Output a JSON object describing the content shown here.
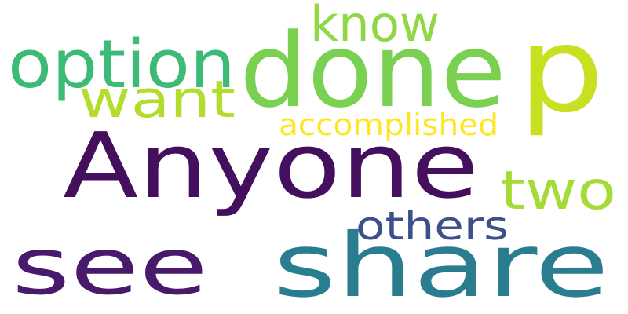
{
  "words": [
    {
      "key": "anyone",
      "text": "Anyone",
      "color": "#440f5d"
    },
    {
      "key": "see",
      "text": "see",
      "color": "#481a6c"
    },
    {
      "key": "share",
      "text": "share",
      "color": "#2a7d8e"
    },
    {
      "key": "done",
      "text": "done",
      "color": "#7ad151"
    },
    {
      "key": "p",
      "text": "p",
      "color": "#c8e020"
    },
    {
      "key": "option",
      "text": "option",
      "color": "#3bbb75"
    },
    {
      "key": "know",
      "text": "know",
      "color": "#8fd744"
    },
    {
      "key": "want",
      "text": "want",
      "color": "#b2dd2d"
    },
    {
      "key": "two",
      "text": "two",
      "color": "#a5db36"
    },
    {
      "key": "others",
      "text": "others",
      "color": "#3c508b"
    },
    {
      "key": "accomplished",
      "text": "accomplished",
      "color": "#fde725"
    }
  ]
}
